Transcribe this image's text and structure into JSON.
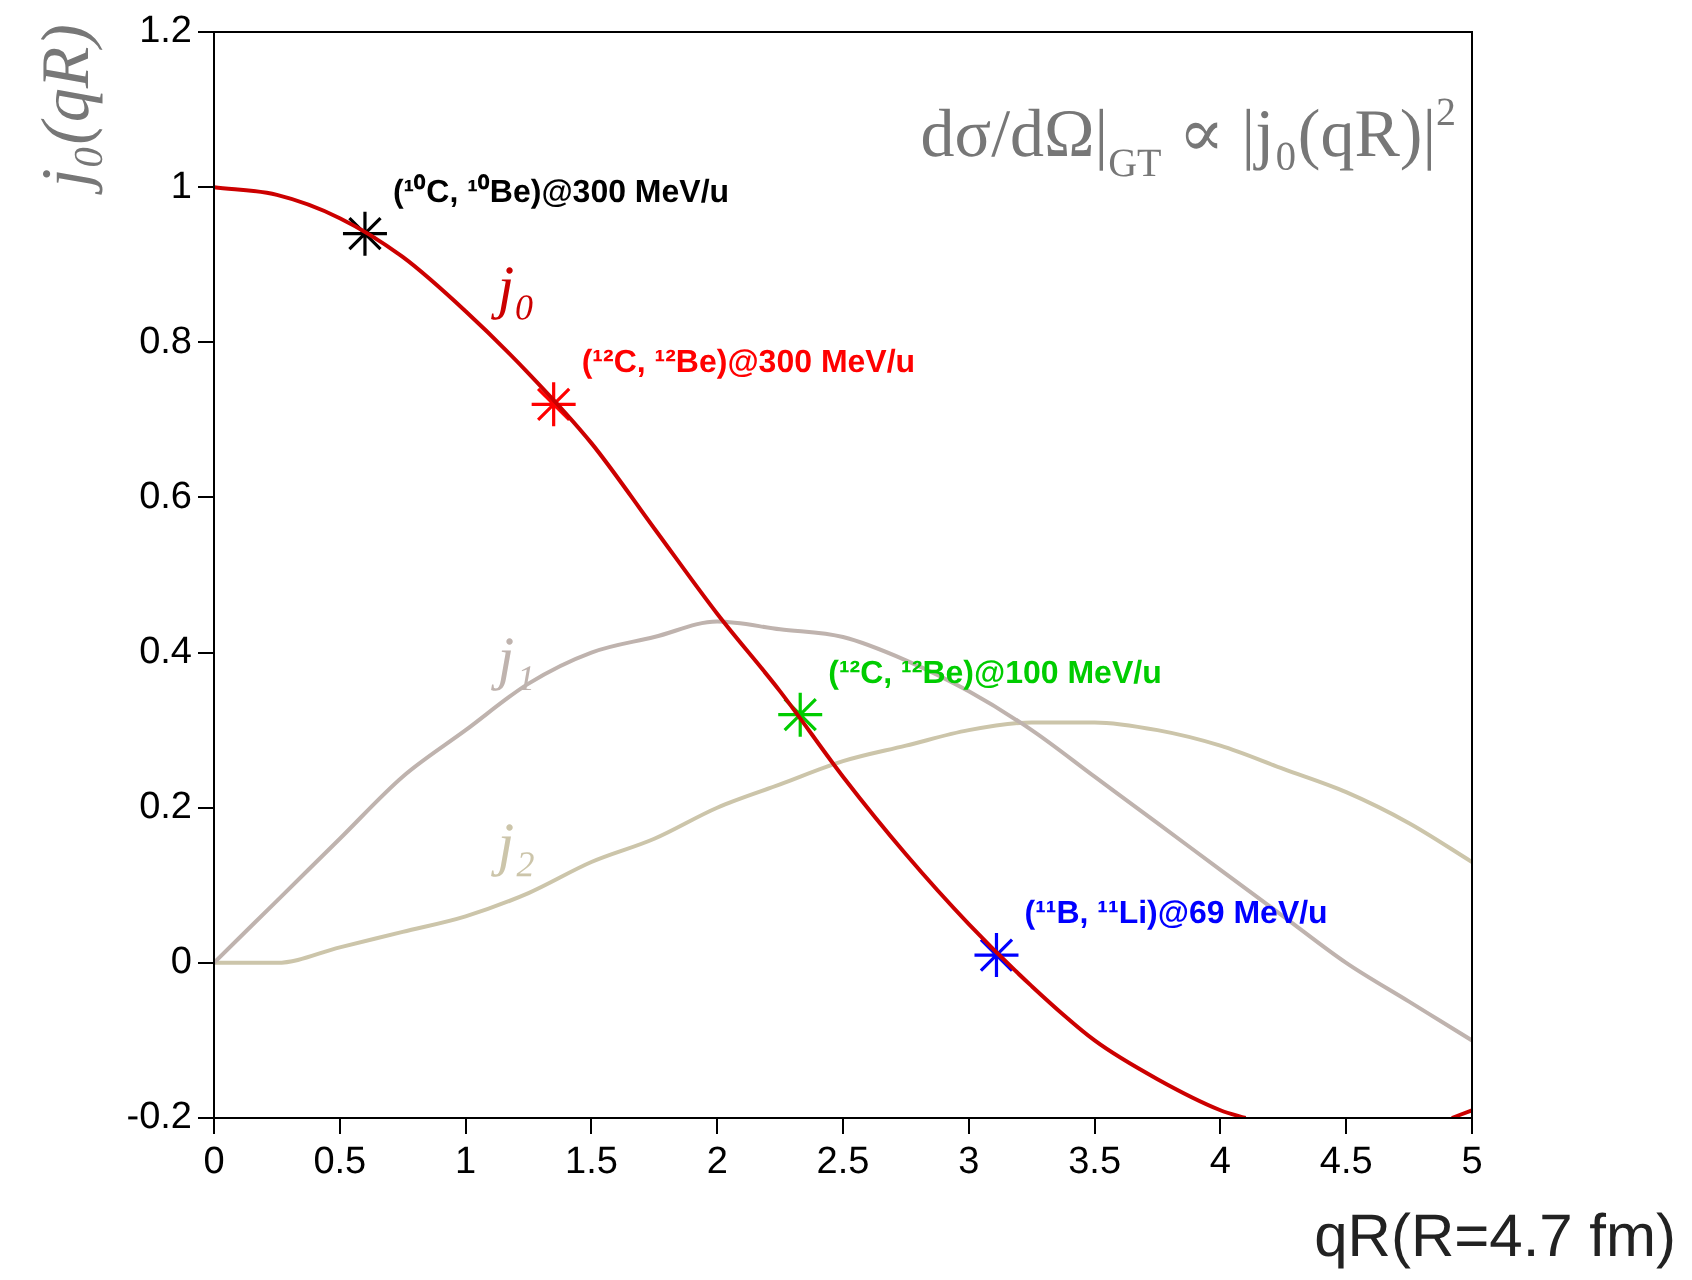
{
  "chart_data": {
    "type": "line",
    "ylabel": "j₀(qR)",
    "xlabel": "qR(R=4.7 fm)",
    "annotations": [
      "dσ/dΩ|$_{GT}$ ∝ |j₀(qR)|$^{2}$"
    ],
    "x": [
      0,
      0.25,
      0.5,
      0.75,
      1,
      1.25,
      1.5,
      1.75,
      2,
      2.25,
      2.5,
      2.75,
      3,
      3.25,
      3.5,
      3.75,
      4,
      4.25,
      4.5,
      4.75,
      5
    ],
    "series": [
      {
        "name": "j₀",
        "color": "#cc0000",
        "x": [
          0,
          0.25,
          0.5,
          0.75,
          1,
          1.25,
          1.5,
          1.75,
          2,
          2.25,
          2.5,
          2.75,
          3,
          3.25,
          3.5,
          3.75,
          4,
          4.1,
          4.5,
          4.92,
          5
        ],
        "values": [
          1,
          0.99,
          0.96,
          0.91,
          0.84,
          0.76,
          0.67,
          0.56,
          0.45,
          0.35,
          0.24,
          0.14,
          0.05,
          -0.03,
          -0.1,
          -0.15,
          -0.19,
          -0.2,
          null,
          -0.2,
          -0.19
        ]
      },
      {
        "name": "j₁",
        "color": "#bfb3ae",
        "values": [
          0,
          0.08,
          0.16,
          0.24,
          0.3,
          0.36,
          0.4,
          0.42,
          0.44,
          0.43,
          0.42,
          0.39,
          0.35,
          0.3,
          0.24,
          0.18,
          0.12,
          0.06,
          0,
          -0.05,
          -0.1
        ]
      },
      {
        "name": "j₂",
        "color": "#ccc5aa",
        "values": [
          0,
          0,
          0.02,
          0.04,
          0.06,
          0.09,
          0.13,
          0.16,
          0.2,
          0.23,
          0.26,
          0.28,
          0.3,
          0.31,
          0.31,
          0.3,
          0.28,
          0.25,
          0.22,
          0.18,
          0.13
        ]
      },
      {
        "name": "(¹⁰C, ¹⁰Be)@300 MeV/u",
        "type": "scatter",
        "marker": "cross",
        "color": "#000000",
        "x": [
          0.6
        ],
        "values": [
          0.94
        ]
      },
      {
        "name": "(¹²C, ¹²Be)@300 MeV/u",
        "type": "scatter",
        "marker": "cross",
        "color": "#ff0000",
        "x": [
          1.35
        ],
        "values": [
          0.72
        ]
      },
      {
        "name": "(¹²C, ¹²Be)@100 MeV/u",
        "type": "scatter",
        "marker": "cross",
        "color": "#00cc00",
        "x": [
          2.33
        ],
        "values": [
          0.32
        ]
      },
      {
        "name": "(¹¹B, ¹¹Li)@69 MeV/u",
        "type": "scatter",
        "marker": "cross",
        "color": "#0000ff",
        "x": [
          3.11
        ],
        "values": [
          0.01
        ]
      }
    ],
    "xlim": [
      0,
      5
    ],
    "xticks": [
      0,
      0.5,
      1,
      1.5,
      2,
      2.5,
      3,
      3.5,
      4,
      4.5,
      5
    ],
    "ylim": [
      -0.2,
      1.2
    ],
    "yticks": [
      -0.2,
      0,
      0.2,
      0.4,
      0.6,
      0.8,
      1,
      1.2
    ],
    "grid": false,
    "legend": false,
    "marker": "none",
    "line_style": "solid"
  }
}
